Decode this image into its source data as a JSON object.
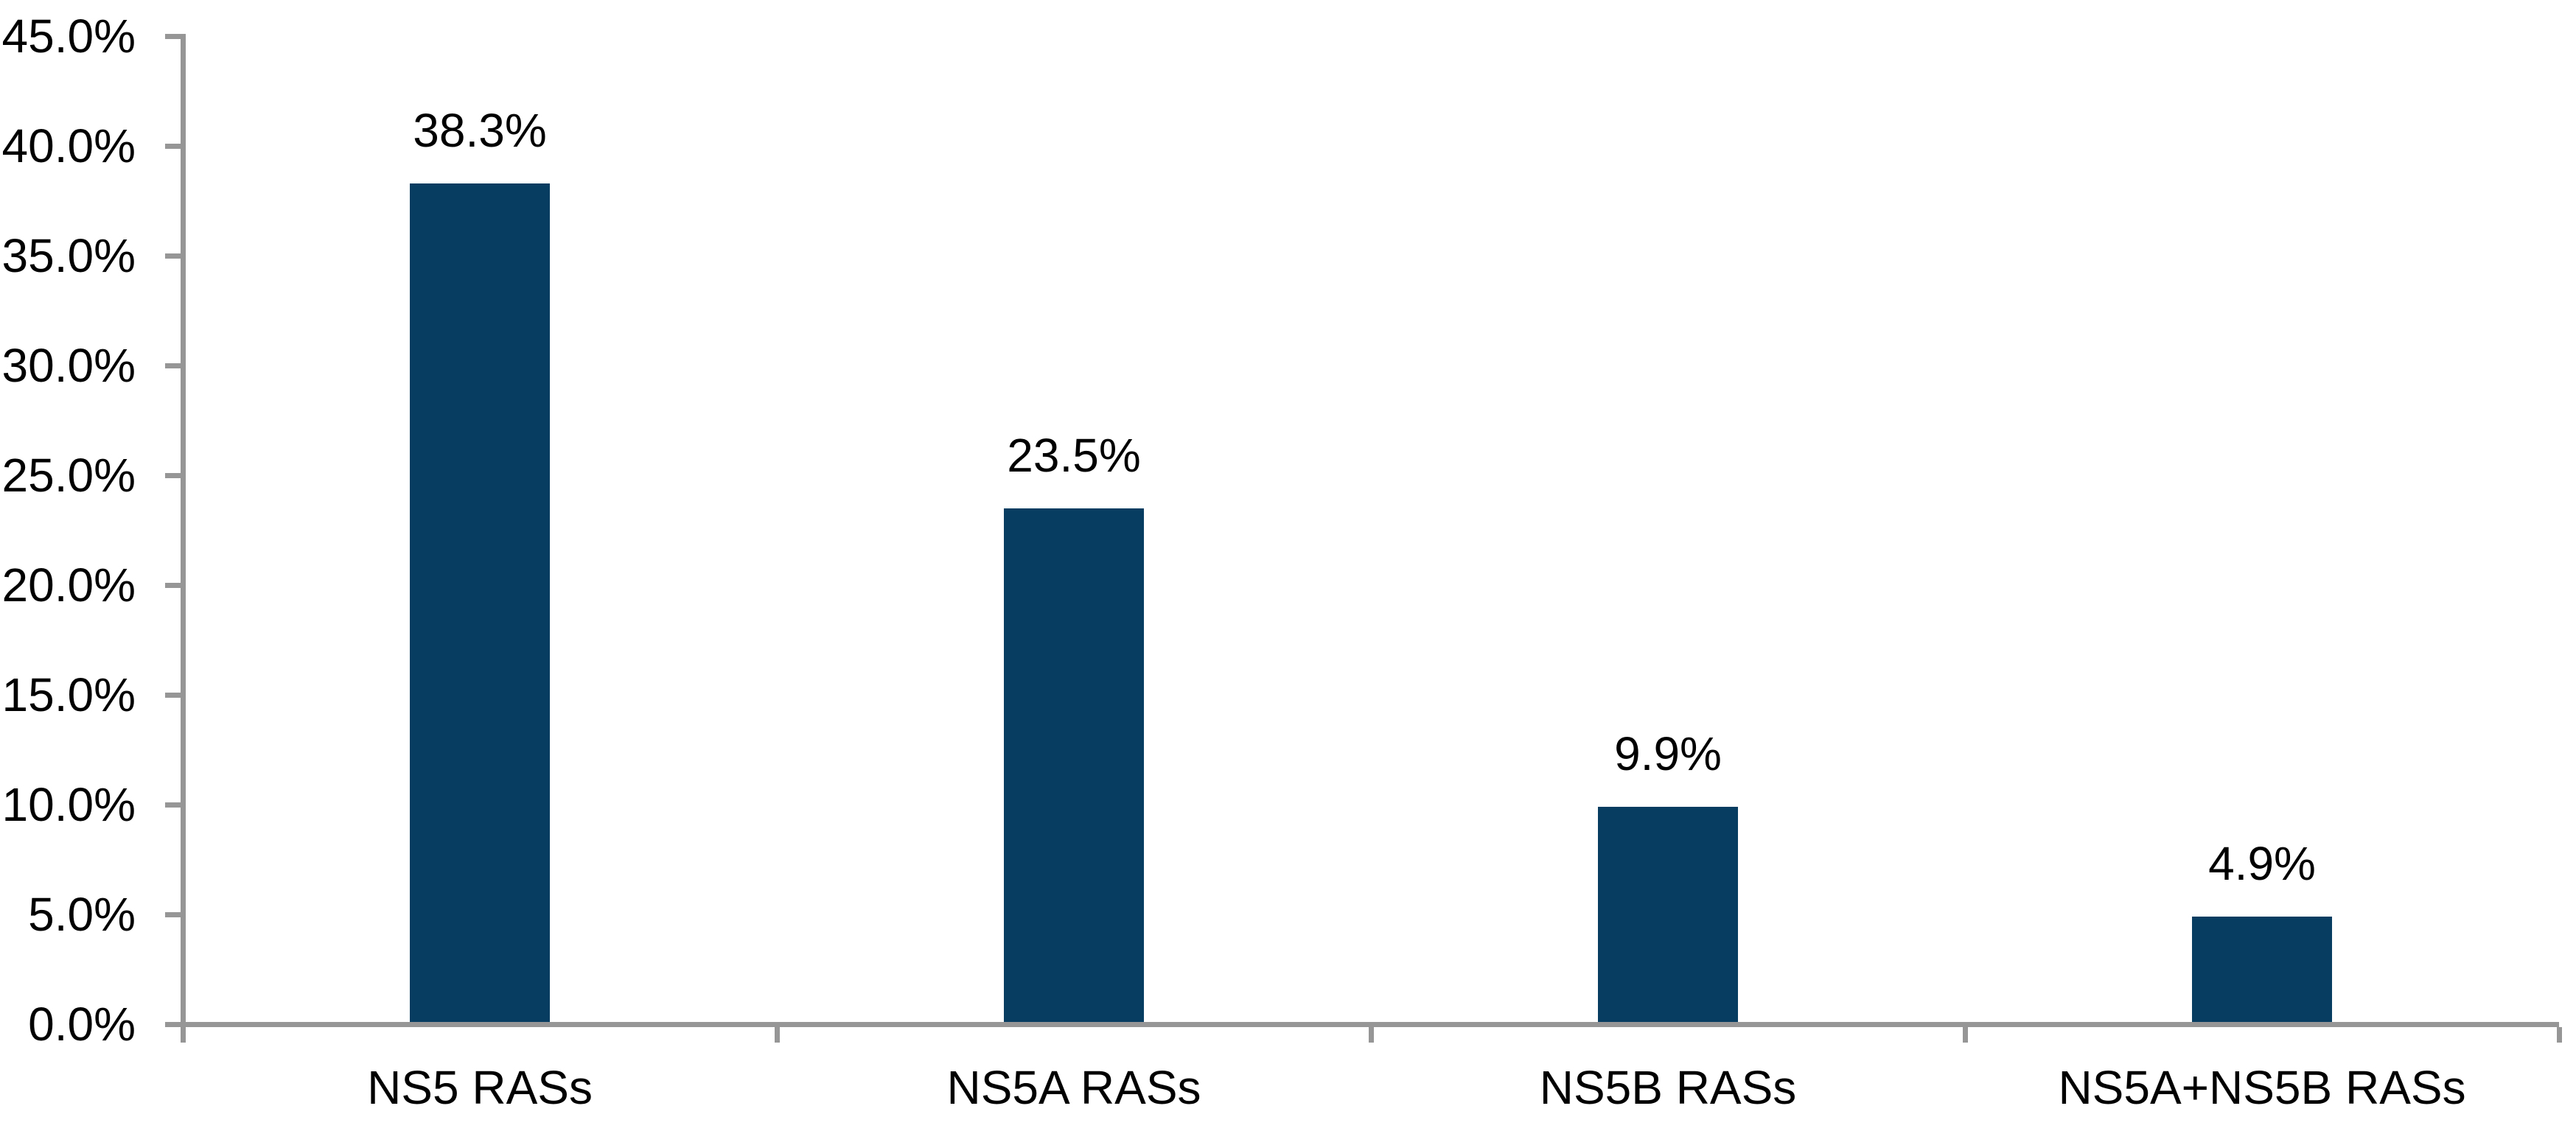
{
  "chart_data": {
    "type": "bar",
    "title": "",
    "xlabel": "",
    "ylabel": "",
    "categories": [
      "NS5 RASs",
      "NS5A RASs",
      "NS5B RASs",
      "NS5A+NS5B RASs"
    ],
    "values": [
      38.3,
      23.5,
      9.9,
      4.9
    ],
    "value_labels": [
      "38.3%",
      "23.5%",
      "9.9%",
      "4.9%"
    ],
    "y_tick_labels": [
      "0.0%",
      "5.0%",
      "10.0%",
      "15.0%",
      "20.0%",
      "25.0%",
      "30.0%",
      "35.0%",
      "40.0%",
      "45.0%"
    ],
    "ylim": [
      0,
      45
    ],
    "y_step": 5,
    "grid": false,
    "legend_position": "none",
    "colors": {
      "bar": "#083D62",
      "axis": "#969696",
      "text": "#000000",
      "background": "#FFFFFF"
    }
  }
}
